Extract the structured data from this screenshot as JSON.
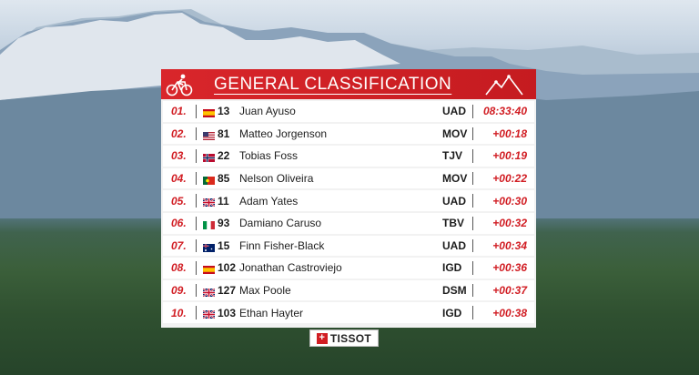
{
  "header": {
    "title": "GENERAL CLASSIFICATION"
  },
  "sponsor": {
    "label": "TISSOT"
  },
  "colors": {
    "accent": "#d11d23",
    "header_bg": "#c51b20",
    "row_bg": "#ffffff"
  },
  "rows": [
    {
      "rank": "01.",
      "flag": "ES",
      "number": "13",
      "name": "Juan Ayuso",
      "team": "UAD",
      "time": "08:33:40"
    },
    {
      "rank": "02.",
      "flag": "US",
      "number": "81",
      "name": "Matteo Jorgenson",
      "team": "MOV",
      "time": "+00:18"
    },
    {
      "rank": "03.",
      "flag": "NO",
      "number": "22",
      "name": "Tobias Foss",
      "team": "TJV",
      "time": "+00:19"
    },
    {
      "rank": "04.",
      "flag": "PT",
      "number": "85",
      "name": "Nelson Oliveira",
      "team": "MOV",
      "time": "+00:22"
    },
    {
      "rank": "05.",
      "flag": "GB",
      "number": "11",
      "name": "Adam Yates",
      "team": "UAD",
      "time": "+00:30"
    },
    {
      "rank": "06.",
      "flag": "IT",
      "number": "93",
      "name": "Damiano Caruso",
      "team": "TBV",
      "time": "+00:32"
    },
    {
      "rank": "07.",
      "flag": "AU",
      "number": "15",
      "name": "Finn Fisher-Black",
      "team": "UAD",
      "time": "+00:34"
    },
    {
      "rank": "08.",
      "flag": "ES",
      "number": "102",
      "name": "Jonathan Castroviejo",
      "team": "IGD",
      "time": "+00:36"
    },
    {
      "rank": "09.",
      "flag": "GB",
      "number": "127",
      "name": "Max Poole",
      "team": "DSM",
      "time": "+00:37"
    },
    {
      "rank": "10.",
      "flag": "GB",
      "number": "103",
      "name": "Ethan Hayter",
      "team": "IGD",
      "time": "+00:38"
    }
  ]
}
